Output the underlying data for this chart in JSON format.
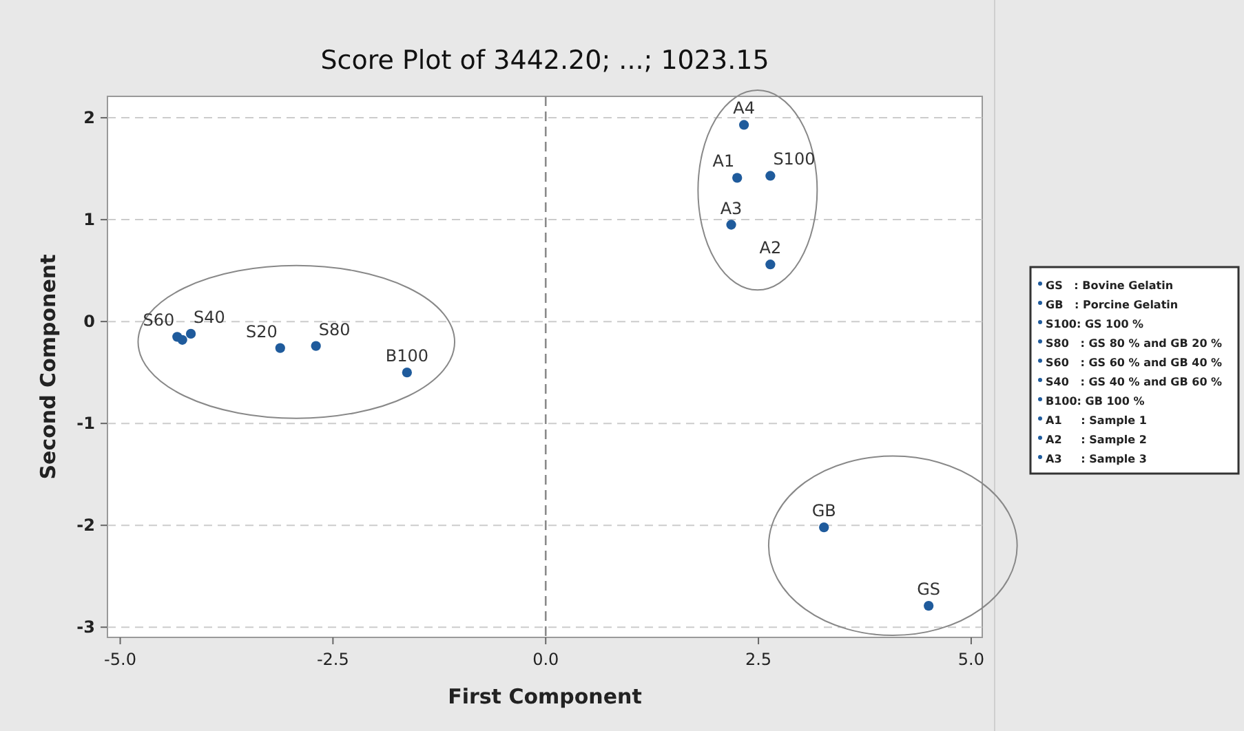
{
  "chart_data": {
    "type": "scatter",
    "title": "Score Plot of 3442.20; ...; 1023.15",
    "xlabel": "First Component",
    "ylabel": "Second Component",
    "xlim": [
      -5.15,
      5.13
    ],
    "ylim": [
      -3.1,
      2.21
    ],
    "xticks": [
      {
        "value": -5,
        "label": "-5.0"
      },
      -2.5,
      {
        "value": 0,
        "label": "0.0"
      },
      2.5,
      {
        "value": 5,
        "label": "5.0"
      }
    ],
    "yticks": [
      -3,
      -2,
      -1,
      0,
      1,
      2
    ],
    "grid": "y",
    "marker": "circle",
    "ref_lines": [
      {
        "axis": "x",
        "value": 0
      }
    ],
    "series": [
      {
        "color": "#1f5b9c",
        "x": [
          2.33,
          2.25,
          2.64,
          2.18,
          2.64,
          3.27,
          4.5,
          -1.63,
          -2.7,
          -3.12,
          -4.33,
          -4.17,
          -4.27
        ],
        "values": [
          1.93,
          1.41,
          1.43,
          0.95,
          0.56,
          -2.02,
          -2.79,
          -0.5,
          -0.24,
          -0.26,
          -0.15,
          -0.12,
          -0.18
        ],
        "value_labels": [
          "A4",
          "A1",
          "S100",
          "A3",
          "A2",
          "GB",
          "GS",
          "B100",
          "S80",
          "S20",
          "S60",
          "S40",
          null
        ]
      }
    ],
    "annotations": [
      "GS   : Bovine Gelatin",
      "GB   : Porcine Gelatin",
      "S100: GS 100 %",
      "S80   : GS 80 % and GB 20 %",
      "S60   : GS 60 % and GB 40 %",
      "S40   : GS 40 % and GB 60 %",
      "B100: GB 100 %",
      "A1     : Sample 1",
      "A2     : Sample 2",
      "A3     : Sample 3"
    ]
  }
}
